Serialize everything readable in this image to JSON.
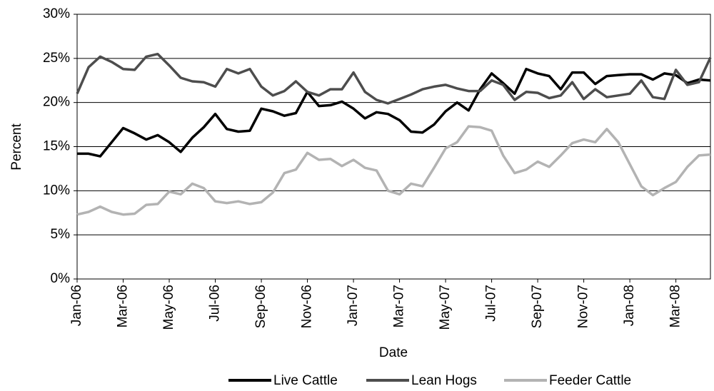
{
  "chart_data": {
    "type": "line",
    "x_label": "Date",
    "y_label": "Percent",
    "categories": [
      "Jan-06",
      null,
      null,
      null,
      "Mar-06",
      null,
      null,
      null,
      "May-06",
      null,
      null,
      null,
      "Jul-06",
      null,
      null,
      null,
      "Sep-06",
      null,
      null,
      null,
      "Nov-06",
      null,
      null,
      null,
      "Jan-07",
      null,
      null,
      null,
      "Mar-07",
      null,
      null,
      null,
      "May-07",
      null,
      null,
      null,
      "Jul-07",
      null,
      null,
      null,
      "Sep-07",
      null,
      null,
      null,
      "Nov-07",
      null,
      null,
      null,
      "Jan-08",
      null,
      null,
      null,
      "Mar-08",
      null,
      null,
      null
    ],
    "series": [
      {
        "name": "Live Cattle",
        "color": "#000000",
        "values": [
          14.2,
          14.2,
          13.9,
          15.5,
          17.1,
          16.5,
          15.8,
          16.3,
          15.5,
          14.4,
          16.0,
          17.2,
          18.7,
          17.0,
          16.7,
          16.8,
          19.3,
          19.0,
          18.5,
          18.8,
          21.2,
          19.6,
          19.7,
          20.1,
          19.3,
          18.2,
          18.9,
          18.7,
          18.0,
          16.7,
          16.6,
          17.5,
          19.0,
          20.0,
          19.1,
          21.5,
          23.3,
          22.2,
          21.0,
          23.8,
          23.3,
          23.0,
          21.5,
          23.4,
          23.4,
          22.1,
          23.0,
          23.1,
          23.2,
          23.2,
          22.6,
          23.3,
          23.1,
          22.2,
          22.6,
          22.5
        ]
      },
      {
        "name": "Lean Hogs",
        "color": "#4d4d4d",
        "values": [
          21.0,
          24.0,
          25.2,
          24.6,
          23.8,
          23.7,
          25.2,
          25.5,
          24.2,
          22.8,
          22.4,
          22.3,
          21.8,
          23.8,
          23.3,
          23.8,
          21.8,
          20.8,
          21.3,
          22.4,
          21.2,
          20.8,
          21.5,
          21.5,
          23.4,
          21.2,
          20.3,
          19.9,
          20.4,
          20.9,
          21.5,
          21.8,
          22.0,
          21.6,
          21.3,
          21.3,
          22.5,
          22.0,
          20.3,
          21.2,
          21.1,
          20.5,
          20.8,
          22.3,
          20.4,
          21.5,
          20.6,
          20.8,
          21.0,
          22.5,
          20.6,
          20.4,
          23.7,
          22.0,
          22.3,
          25.1
        ]
      },
      {
        "name": "Feeder Cattle",
        "color": "#b3b3b3",
        "values": [
          7.3,
          7.6,
          8.2,
          7.6,
          7.3,
          7.4,
          8.4,
          8.5,
          9.9,
          9.6,
          10.8,
          10.3,
          8.8,
          8.6,
          8.8,
          8.5,
          8.7,
          9.8,
          12.0,
          12.4,
          14.3,
          13.5,
          13.6,
          12.8,
          13.5,
          12.6,
          12.3,
          10.0,
          9.6,
          10.8,
          10.5,
          12.6,
          14.8,
          15.5,
          17.3,
          17.2,
          16.8,
          14.0,
          12.0,
          12.4,
          13.3,
          12.7,
          14.0,
          15.4,
          15.8,
          15.5,
          17.0,
          15.5,
          13.0,
          10.5,
          9.5,
          10.3,
          11.0,
          12.7,
          14.0,
          14.1
        ]
      }
    ],
    "ylim": [
      0,
      30
    ],
    "yticks": [
      {
        "value": 0,
        "label": "0%"
      },
      {
        "value": 5,
        "label": "5%"
      },
      {
        "value": 10,
        "label": "10%"
      },
      {
        "value": 15,
        "label": "15%"
      },
      {
        "value": 20,
        "label": "20%"
      },
      {
        "value": 25,
        "label": "25%"
      },
      {
        "value": 30,
        "label": "30%"
      }
    ],
    "grid": true,
    "legend": "bottom"
  }
}
